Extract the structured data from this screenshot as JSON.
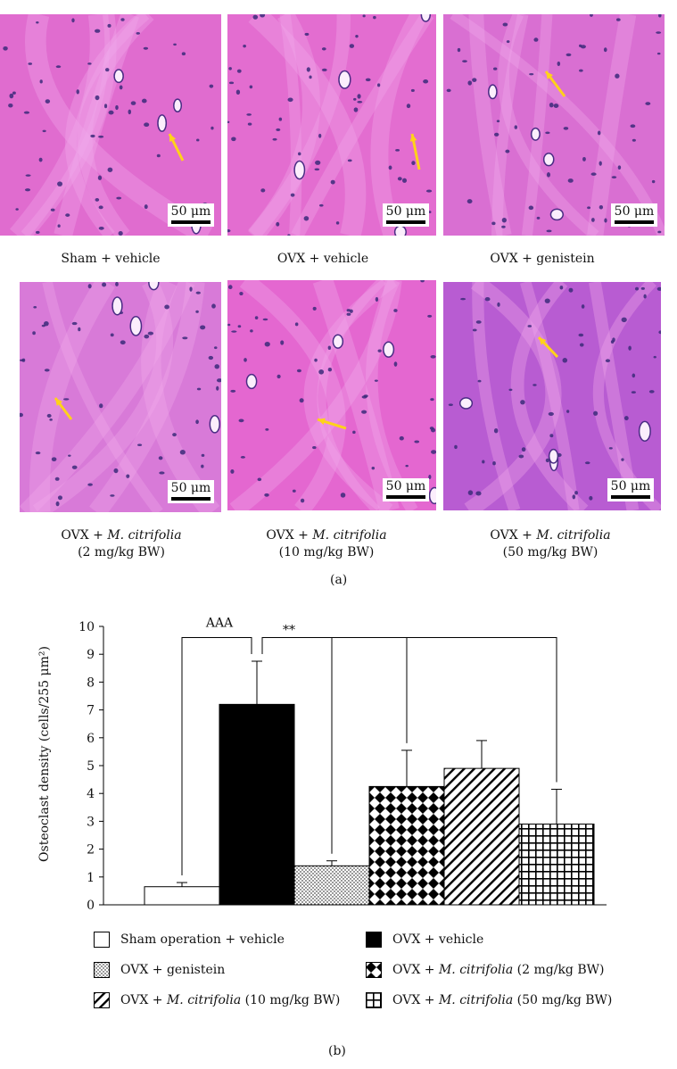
{
  "panel_a": {
    "scale_bar_label": "50 μm",
    "images": [
      {
        "caption": "Sham + vehicle",
        "dose": "",
        "tint": "#e06ccf"
      },
      {
        "caption": "OVX + vehicle",
        "dose": "",
        "tint": "#e36dd0"
      },
      {
        "caption": "OVX + genistein",
        "dose": "",
        "tint": "#d96fd2"
      },
      {
        "caption_prefix": "OVX + ",
        "caption_italic": "M. citrifolia",
        "dose": "(2 mg/kg BW)",
        "tint": "#d87ad8"
      },
      {
        "caption_prefix": "OVX + ",
        "caption_italic": "M. citrifolia",
        "dose": "(10 mg/kg BW)",
        "tint": "#e467d0"
      },
      {
        "caption_prefix": "OVX + ",
        "caption_italic": "M. citrifolia",
        "dose": "(50 mg/kg BW)",
        "tint": "#b85cd2"
      }
    ],
    "label": "(a)"
  },
  "chart_data": {
    "type": "bar",
    "ylabel": "Osteoclast density (cells/255 μm²)",
    "ylim": [
      0,
      10
    ],
    "yticks": [
      0,
      1,
      2,
      3,
      4,
      5,
      6,
      7,
      8,
      9,
      10
    ],
    "grid": false,
    "series": [
      {
        "name": "Sham operation + vehicle",
        "value": 0.65,
        "error": 0.15,
        "pattern": "white"
      },
      {
        "name": "OVX + vehicle",
        "value": 7.2,
        "error": 1.55,
        "pattern": "black"
      },
      {
        "name": "OVX + genistein",
        "value": 1.4,
        "error": 0.18,
        "pattern": "dots"
      },
      {
        "name": "OVX + M. citrifolia (2 mg/kg BW)",
        "value": 4.25,
        "error": 1.3,
        "pattern": "diamonds"
      },
      {
        "name": "OVX + M. citrifolia (10 mg/kg BW)",
        "value": 4.9,
        "error": 1.0,
        "pattern": "diagonal"
      },
      {
        "name": "OVX + M. citrifolia (50 mg/kg BW)",
        "value": 2.9,
        "error": 1.25,
        "pattern": "grid"
      }
    ],
    "annotations": [
      {
        "text": "AAA",
        "between": [
          "Sham operation + vehicle",
          "OVX + vehicle"
        ]
      },
      {
        "text": "**",
        "between": [
          "OVX + vehicle",
          "OVX + genistein",
          "OVX + M. citrifolia (2 mg/kg BW)",
          "OVX + M. citrifolia (50 mg/kg BW)"
        ]
      }
    ]
  },
  "legend": [
    {
      "prefix": "Sham operation + vehicle",
      "italic": "",
      "suffix": "",
      "pattern": "white"
    },
    {
      "prefix": "OVX + vehicle",
      "italic": "",
      "suffix": "",
      "pattern": "black"
    },
    {
      "prefix": "OVX + genistein",
      "italic": "",
      "suffix": "",
      "pattern": "dots"
    },
    {
      "prefix": "OVX + ",
      "italic": "M. citrifolia",
      "suffix": " (2 mg/kg BW)",
      "pattern": "diamonds"
    },
    {
      "prefix": "OVX + ",
      "italic": "M. citrifolia",
      "suffix": " (10 mg/kg BW)",
      "pattern": "diagonal"
    },
    {
      "prefix": "OVX + ",
      "italic": "M. citrifolia",
      "suffix": " (50 mg/kg BW)",
      "pattern": "grid"
    }
  ],
  "panel_b_label": "(b)"
}
